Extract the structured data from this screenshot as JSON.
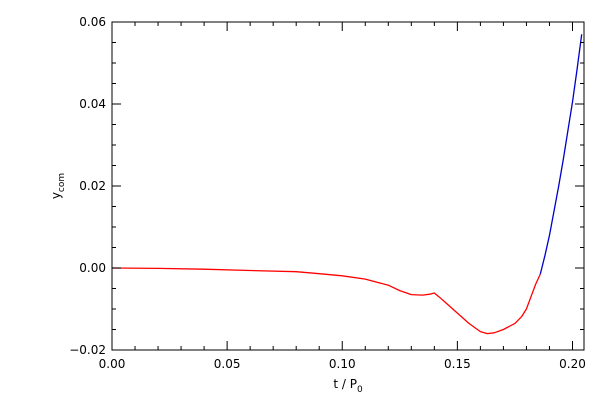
{
  "chart_data": {
    "type": "line",
    "title": "",
    "xlabel": {
      "main": "t / P",
      "sub": "0"
    },
    "ylabel": {
      "main": "y",
      "sub": "com"
    },
    "xlim": [
      0.0,
      0.205
    ],
    "ylim": [
      -0.02,
      0.06
    ],
    "grid": false,
    "legend": "none",
    "xticks": [
      {
        "value": 0.0,
        "label": "0.00"
      },
      {
        "value": 0.05,
        "label": "0.05"
      },
      {
        "value": 0.1,
        "label": "0.10"
      },
      {
        "value": 0.15,
        "label": "0.15"
      },
      {
        "value": 0.2,
        "label": "0.20"
      }
    ],
    "yticks": [
      {
        "value": -0.02,
        "label": "−0.02"
      },
      {
        "value": 0.0,
        "label": "0.00"
      },
      {
        "value": 0.02,
        "label": "0.02"
      },
      {
        "value": 0.04,
        "label": "0.04"
      },
      {
        "value": 0.06,
        "label": "0.06"
      }
    ],
    "series": [
      {
        "color": "#ff0000",
        "x": [
          0.0,
          0.02,
          0.04,
          0.06,
          0.08,
          0.09,
          0.1,
          0.11,
          0.12,
          0.125,
          0.13,
          0.135,
          0.138,
          0.14,
          0.142,
          0.145,
          0.15,
          0.155,
          0.16,
          0.163,
          0.166,
          0.17,
          0.175,
          0.178,
          0.18,
          0.182,
          0.184,
          0.186
        ],
        "y": [
          0.0,
          -0.0001,
          -0.0003,
          -0.0006,
          -0.0009,
          -0.0014,
          -0.0019,
          -0.0027,
          -0.0042,
          -0.0055,
          -0.0065,
          -0.0066,
          -0.0064,
          -0.0061,
          -0.007,
          -0.0085,
          -0.011,
          -0.0135,
          -0.0155,
          -0.016,
          -0.0158,
          -0.015,
          -0.0135,
          -0.0118,
          -0.01,
          -0.007,
          -0.004,
          -0.0015
        ]
      },
      {
        "color": "#0000cc",
        "x": [
          0.186,
          0.188,
          0.19,
          0.192,
          0.194,
          0.196,
          0.198,
          0.2,
          0.202,
          0.204
        ],
        "y": [
          -0.0015,
          0.003,
          0.008,
          0.014,
          0.02,
          0.0265,
          0.0335,
          0.0405,
          0.0485,
          0.057
        ]
      }
    ]
  }
}
